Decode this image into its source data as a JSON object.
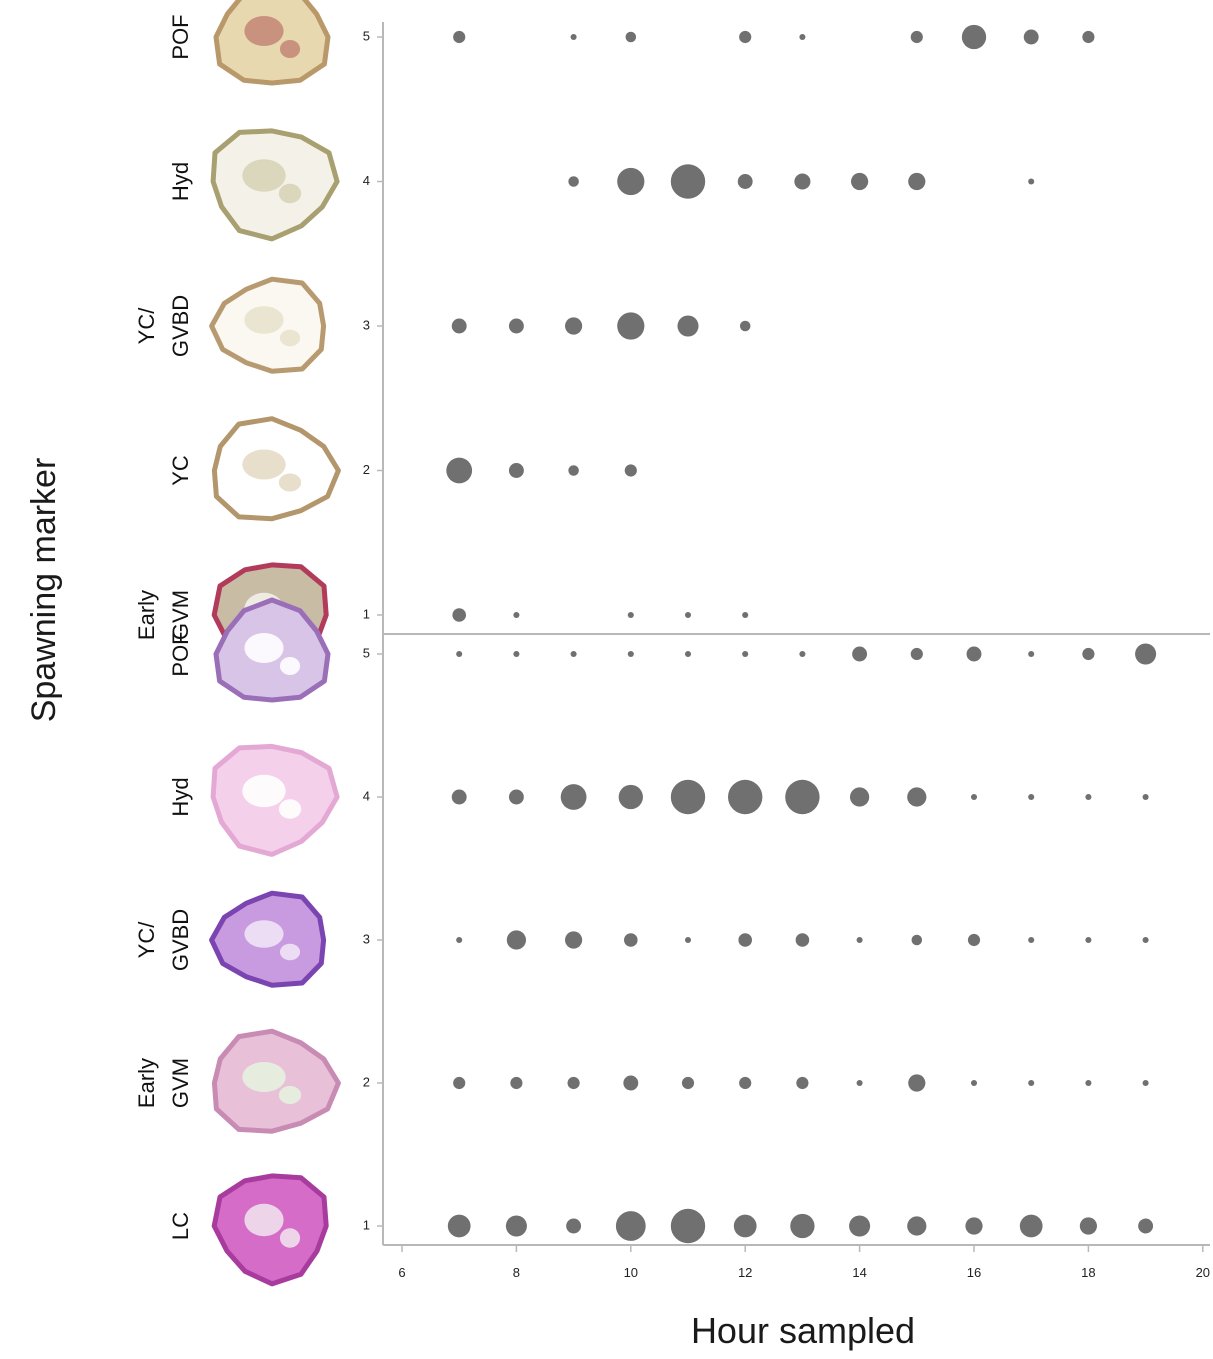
{
  "chart_data": {
    "type": "scatter",
    "encoding": "bubble",
    "bubble_color": "#707070",
    "ylabel": "Spawning marker",
    "xlabel": "Hour sampled",
    "xlim": [
      5.5,
      20
    ],
    "x_ticks": [
      6,
      8,
      10,
      12,
      14,
      16,
      18,
      20
    ],
    "panels": [
      {
        "ylim": [
          0.85,
          5.15
        ],
        "y_ticks": [
          1,
          2,
          3,
          4,
          5
        ],
        "stage_labels": [
          {
            "y": 5,
            "lines": [
              "POF"
            ]
          },
          {
            "y": 4,
            "lines": [
              "Hyd"
            ]
          },
          {
            "y": 3,
            "lines": [
              "YC/",
              "GVBD"
            ]
          },
          {
            "y": 2,
            "lines": [
              "YC"
            ]
          },
          {
            "y": 1,
            "lines": [
              "Early",
              "GVM"
            ]
          }
        ],
        "stage_images": [
          {
            "y": 5,
            "name": "pof-histology-image",
            "colors": [
              "#b9986a",
              "#e8d8b0",
              "#c48b7a"
            ]
          },
          {
            "y": 4,
            "name": "hyd-histology-image",
            "colors": [
              "#a8a070",
              "#f4f2e8",
              "#d8d4b8"
            ]
          },
          {
            "y": 3,
            "name": "yc-gvbd-histology-image",
            "colors": [
              "#b89a70",
              "#faf8f0",
              "#e8e2cc"
            ]
          },
          {
            "y": 2,
            "name": "yc-histology-image",
            "colors": [
              "#b3966c",
              "#ffffff",
              "#e4dac6"
            ]
          },
          {
            "y": 1,
            "name": "early-gvm-histology-image",
            "colors": [
              "#b23a5a",
              "#c8bca4",
              "#f2f0ea"
            ]
          }
        ],
        "points": [
          {
            "x": 7,
            "y": 5,
            "size": 2
          },
          {
            "x": 9,
            "y": 5,
            "size": 0.5
          },
          {
            "x": 10,
            "y": 5,
            "size": 1.5
          },
          {
            "x": 12,
            "y": 5,
            "size": 2
          },
          {
            "x": 13,
            "y": 5,
            "size": 0.5
          },
          {
            "x": 15,
            "y": 5,
            "size": 2
          },
          {
            "x": 16,
            "y": 5,
            "size": 8
          },
          {
            "x": 17,
            "y": 5,
            "size": 3
          },
          {
            "x": 18,
            "y": 5,
            "size": 2
          },
          {
            "x": 9,
            "y": 4,
            "size": 1.5
          },
          {
            "x": 10,
            "y": 4,
            "size": 10
          },
          {
            "x": 11,
            "y": 4,
            "size": 16
          },
          {
            "x": 12,
            "y": 4,
            "size": 3
          },
          {
            "x": 13,
            "y": 4,
            "size": 3.5
          },
          {
            "x": 14,
            "y": 4,
            "size": 4
          },
          {
            "x": 15,
            "y": 4,
            "size": 4
          },
          {
            "x": 17,
            "y": 4,
            "size": 0.5
          },
          {
            "x": 7,
            "y": 3,
            "size": 3
          },
          {
            "x": 8,
            "y": 3,
            "size": 3
          },
          {
            "x": 9,
            "y": 3,
            "size": 4
          },
          {
            "x": 10,
            "y": 3,
            "size": 10
          },
          {
            "x": 11,
            "y": 3,
            "size": 6
          },
          {
            "x": 12,
            "y": 3,
            "size": 1.5
          },
          {
            "x": 7,
            "y": 2,
            "size": 9
          },
          {
            "x": 8,
            "y": 2,
            "size": 3
          },
          {
            "x": 9,
            "y": 2,
            "size": 1.5
          },
          {
            "x": 10,
            "y": 2,
            "size": 2
          },
          {
            "x": 7,
            "y": 1,
            "size": 2.5
          },
          {
            "x": 8,
            "y": 1,
            "size": 0.5
          },
          {
            "x": 10,
            "y": 1,
            "size": 0.5
          },
          {
            "x": 11,
            "y": 1,
            "size": 0.5
          },
          {
            "x": 12,
            "y": 1,
            "size": 0.5
          }
        ]
      },
      {
        "ylim": [
          0.85,
          5.15
        ],
        "y_ticks": [
          1,
          2,
          3,
          4,
          5
        ],
        "stage_labels": [
          {
            "y": 5,
            "lines": [
              "POF"
            ]
          },
          {
            "y": 4,
            "lines": [
              "Hyd"
            ]
          },
          {
            "y": 3,
            "lines": [
              "YC/",
              "GVBD"
            ]
          },
          {
            "y": 2,
            "lines": [
              "Early",
              "GVM"
            ]
          },
          {
            "y": 1,
            "lines": [
              "LC"
            ]
          }
        ],
        "stage_images": [
          {
            "y": 5,
            "name": "pof-histology-image",
            "colors": [
              "#9a6fb8",
              "#d8c4e6",
              "#ffffff"
            ]
          },
          {
            "y": 4,
            "name": "hyd-histology-image",
            "colors": [
              "#e4a8d4",
              "#f4d0ea",
              "#ffffff"
            ]
          },
          {
            "y": 3,
            "name": "yc-gvbd-histology-image",
            "colors": [
              "#7a45b0",
              "#c89ae0",
              "#f0e4f6"
            ]
          },
          {
            "y": 2,
            "name": "early-gvm-histology-image",
            "colors": [
              "#c88cb4",
              "#e8c0d8",
              "#e6f2e0"
            ]
          },
          {
            "y": 1,
            "name": "lc-histology-image",
            "colors": [
              "#a83c9e",
              "#d46cc8",
              "#f0e0ec"
            ]
          }
        ],
        "points": [
          {
            "x": 7,
            "y": 5,
            "size": 0.5
          },
          {
            "x": 8,
            "y": 5,
            "size": 0.5
          },
          {
            "x": 9,
            "y": 5,
            "size": 0.5
          },
          {
            "x": 10,
            "y": 5,
            "size": 0.5
          },
          {
            "x": 11,
            "y": 5,
            "size": 0.5
          },
          {
            "x": 12,
            "y": 5,
            "size": 0.5
          },
          {
            "x": 13,
            "y": 5,
            "size": 0.5
          },
          {
            "x": 14,
            "y": 5,
            "size": 3
          },
          {
            "x": 15,
            "y": 5,
            "size": 2
          },
          {
            "x": 16,
            "y": 5,
            "size": 3
          },
          {
            "x": 17,
            "y": 5,
            "size": 0.5
          },
          {
            "x": 18,
            "y": 5,
            "size": 2
          },
          {
            "x": 19,
            "y": 5,
            "size": 6
          },
          {
            "x": 7,
            "y": 4,
            "size": 3
          },
          {
            "x": 8,
            "y": 4,
            "size": 3
          },
          {
            "x": 9,
            "y": 4,
            "size": 9
          },
          {
            "x": 10,
            "y": 4,
            "size": 8
          },
          {
            "x": 11,
            "y": 4,
            "size": 16
          },
          {
            "x": 12,
            "y": 4,
            "size": 16
          },
          {
            "x": 13,
            "y": 4,
            "size": 16
          },
          {
            "x": 14,
            "y": 4,
            "size": 5
          },
          {
            "x": 15,
            "y": 4,
            "size": 5
          },
          {
            "x": 16,
            "y": 4,
            "size": 0.5
          },
          {
            "x": 17,
            "y": 4,
            "size": 0.5
          },
          {
            "x": 18,
            "y": 4,
            "size": 0.5
          },
          {
            "x": 19,
            "y": 4,
            "size": 0.5
          },
          {
            "x": 7,
            "y": 3,
            "size": 0.5
          },
          {
            "x": 8,
            "y": 3,
            "size": 5
          },
          {
            "x": 9,
            "y": 3,
            "size": 4
          },
          {
            "x": 10,
            "y": 3,
            "size": 2.5
          },
          {
            "x": 11,
            "y": 3,
            "size": 0.5
          },
          {
            "x": 12,
            "y": 3,
            "size": 2.5
          },
          {
            "x": 13,
            "y": 3,
            "size": 2.5
          },
          {
            "x": 14,
            "y": 3,
            "size": 0.5
          },
          {
            "x": 15,
            "y": 3,
            "size": 1.5
          },
          {
            "x": 16,
            "y": 3,
            "size": 2
          },
          {
            "x": 17,
            "y": 3,
            "size": 0.5
          },
          {
            "x": 18,
            "y": 3,
            "size": 0.5
          },
          {
            "x": 19,
            "y": 3,
            "size": 0.5
          },
          {
            "x": 7,
            "y": 2,
            "size": 2
          },
          {
            "x": 8,
            "y": 2,
            "size": 2
          },
          {
            "x": 9,
            "y": 2,
            "size": 2
          },
          {
            "x": 10,
            "y": 2,
            "size": 3
          },
          {
            "x": 11,
            "y": 2,
            "size": 2
          },
          {
            "x": 12,
            "y": 2,
            "size": 2
          },
          {
            "x": 13,
            "y": 2,
            "size": 2
          },
          {
            "x": 14,
            "y": 2,
            "size": 0.5
          },
          {
            "x": 15,
            "y": 2,
            "size": 4
          },
          {
            "x": 16,
            "y": 2,
            "size": 0.5
          },
          {
            "x": 17,
            "y": 2,
            "size": 0.5
          },
          {
            "x": 18,
            "y": 2,
            "size": 0.5
          },
          {
            "x": 19,
            "y": 2,
            "size": 0.5
          },
          {
            "x": 7,
            "y": 1,
            "size": 7
          },
          {
            "x": 8,
            "y": 1,
            "size": 6
          },
          {
            "x": 9,
            "y": 1,
            "size": 3
          },
          {
            "x": 10,
            "y": 1,
            "size": 12
          },
          {
            "x": 11,
            "y": 1,
            "size": 16
          },
          {
            "x": 12,
            "y": 1,
            "size": 7
          },
          {
            "x": 13,
            "y": 1,
            "size": 8
          },
          {
            "x": 14,
            "y": 1,
            "size": 6
          },
          {
            "x": 15,
            "y": 1,
            "size": 5
          },
          {
            "x": 16,
            "y": 1,
            "size": 4
          },
          {
            "x": 17,
            "y": 1,
            "size": 7
          },
          {
            "x": 18,
            "y": 1,
            "size": 4
          },
          {
            "x": 19,
            "y": 1,
            "size": 3
          }
        ]
      }
    ]
  }
}
